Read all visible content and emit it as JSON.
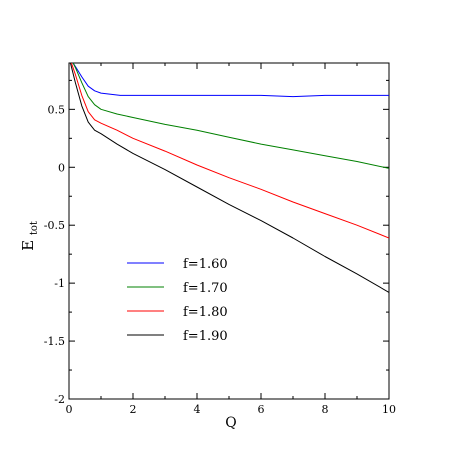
{
  "chart_data": {
    "type": "line",
    "xlabel": "Q",
    "ylabel_main": "E",
    "ylabel_sub": "tot",
    "xlim": [
      0,
      10
    ],
    "ylim": [
      -2,
      0.9
    ],
    "xticks": [
      0,
      2,
      4,
      6,
      8,
      10
    ],
    "yticks": [
      -2,
      -1.5,
      -1,
      -0.5,
      0,
      0.5
    ],
    "xtick_labels": [
      "0",
      "2",
      "4",
      "6",
      "8",
      "10"
    ],
    "ytick_labels": [
      "-2",
      "-1.5",
      "-1",
      "-0.5",
      "0",
      "0.5"
    ],
    "grid": false,
    "legend_position": "lower-left",
    "series": [
      {
        "name": "f=1.60",
        "color": "#0000ff",
        "x": [
          0,
          0.2,
          0.4,
          0.6,
          0.8,
          1.0,
          1.3,
          1.6,
          2.0,
          3,
          4,
          5,
          6,
          7,
          8,
          9,
          10
        ],
        "y": [
          0.95,
          0.87,
          0.78,
          0.7,
          0.66,
          0.64,
          0.63,
          0.62,
          0.62,
          0.62,
          0.62,
          0.62,
          0.62,
          0.61,
          0.62,
          0.62,
          0.62
        ]
      },
      {
        "name": "f=1.70",
        "color": "#008000",
        "x": [
          0,
          0.2,
          0.4,
          0.6,
          0.8,
          1.0,
          1.5,
          2,
          3,
          4,
          5,
          6,
          7,
          8,
          9,
          10
        ],
        "y": [
          0.97,
          0.86,
          0.73,
          0.61,
          0.54,
          0.5,
          0.46,
          0.43,
          0.37,
          0.32,
          0.26,
          0.2,
          0.15,
          0.1,
          0.05,
          -0.01
        ]
      },
      {
        "name": "f=1.80",
        "color": "#ff0000",
        "x": [
          0,
          0.2,
          0.4,
          0.6,
          0.8,
          1.0,
          1.5,
          2,
          3,
          4,
          5,
          6,
          7,
          8,
          9,
          10
        ],
        "y": [
          0.96,
          0.8,
          0.62,
          0.48,
          0.41,
          0.38,
          0.32,
          0.25,
          0.14,
          0.02,
          -0.09,
          -0.19,
          -0.3,
          -0.4,
          -0.5,
          -0.61
        ]
      },
      {
        "name": "f=1.90",
        "color": "#000000",
        "x": [
          0,
          0.2,
          0.4,
          0.6,
          0.8,
          1.0,
          1.5,
          2,
          3,
          4,
          5,
          6,
          7,
          8,
          9,
          10
        ],
        "y": [
          0.95,
          0.73,
          0.53,
          0.39,
          0.32,
          0.29,
          0.2,
          0.12,
          -0.02,
          -0.17,
          -0.32,
          -0.46,
          -0.61,
          -0.77,
          -0.92,
          -1.08
        ]
      }
    ]
  }
}
